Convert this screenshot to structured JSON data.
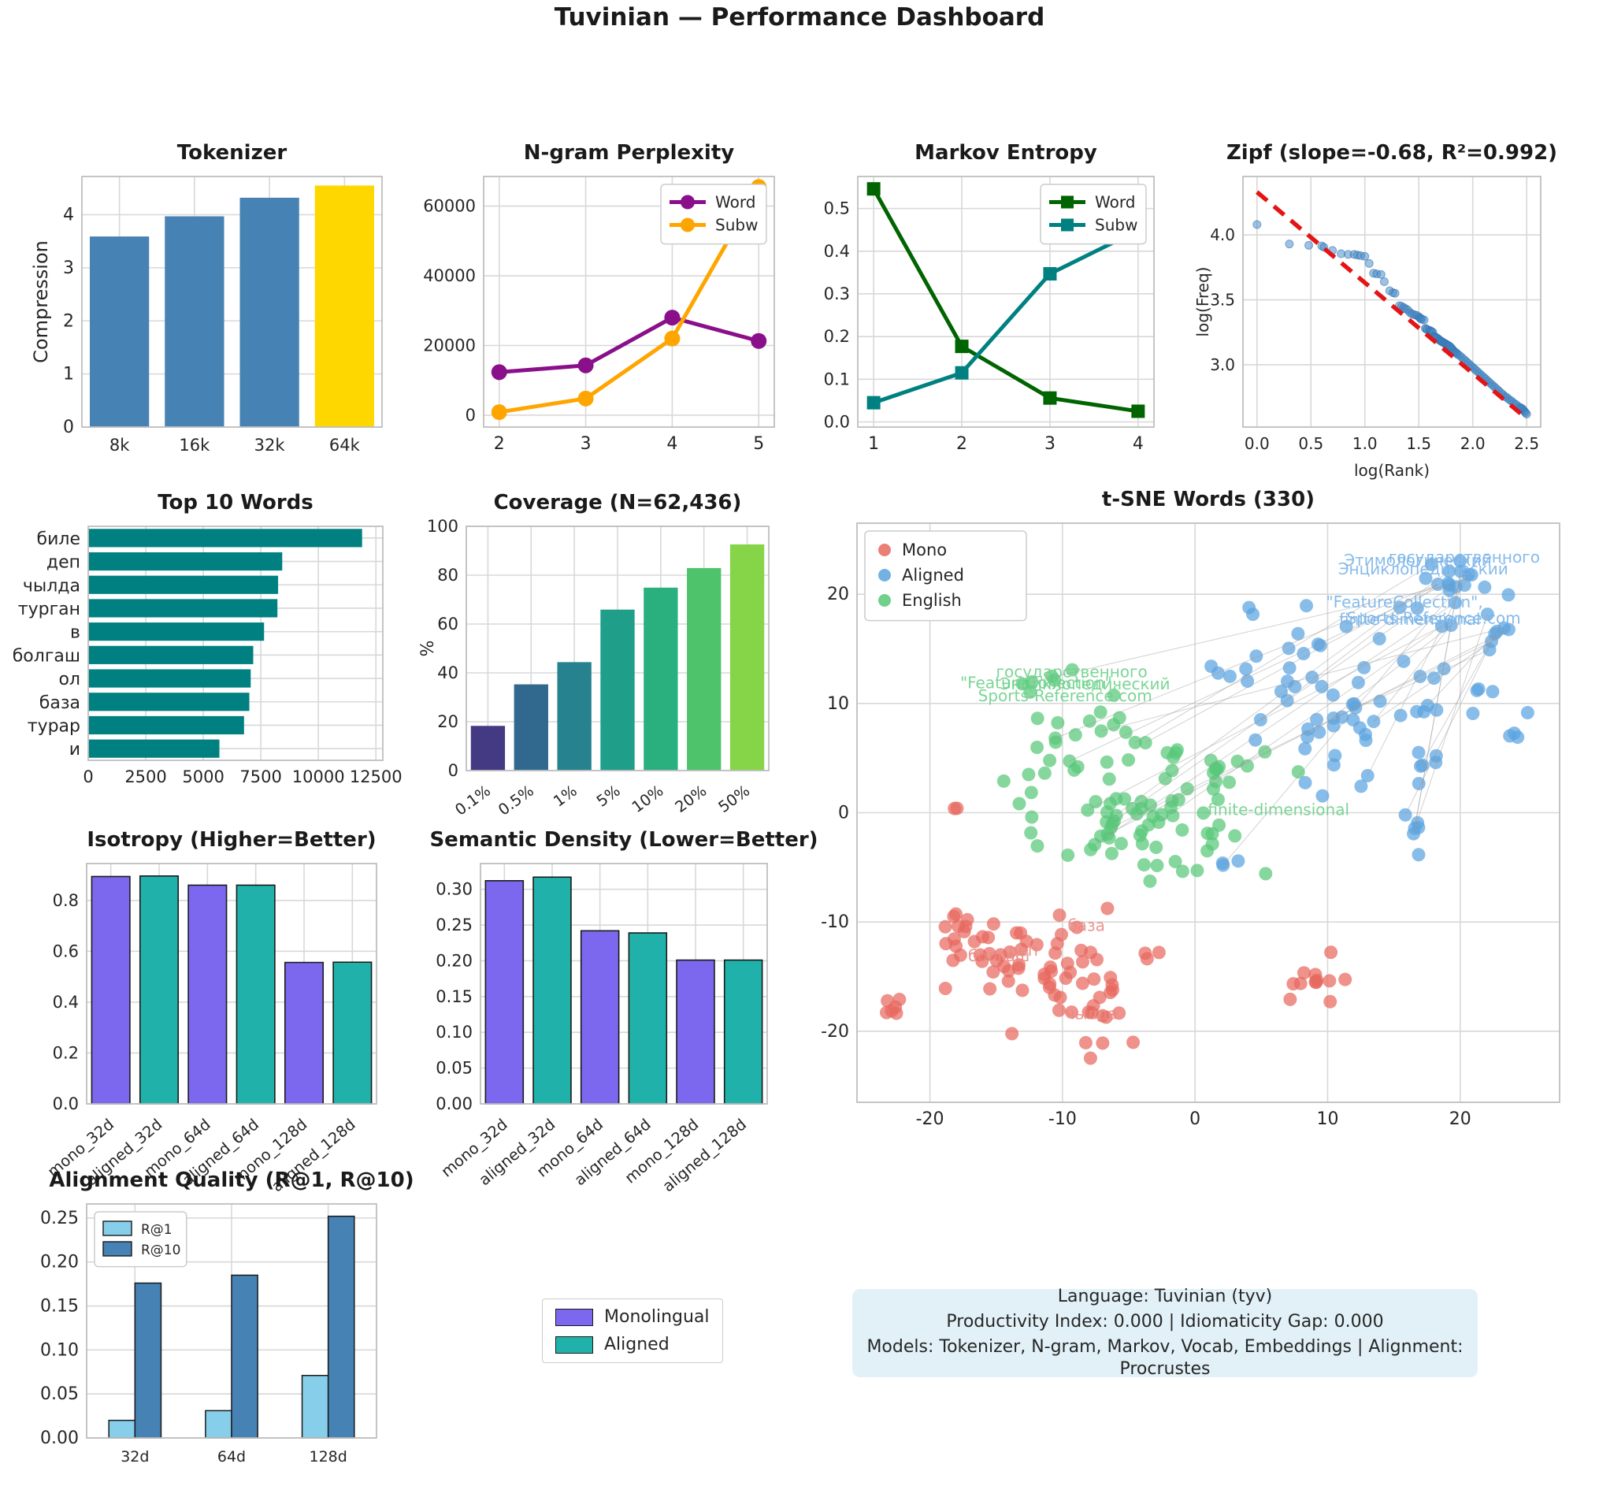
{
  "page_title": "Tuvinian — Performance Dashboard",
  "footer": {
    "bg_color": "#e2f1f8",
    "line1": "Language: Tuvinian (tyv)",
    "line2": "Productivity Index: 0.000  |  Idiomaticity Gap: 0.000",
    "line3": "Models: Tokenizer, N-gram, Markov, Vocab, Embeddings  |  Alignment: Procrustes"
  },
  "standalone_legend": {
    "items": [
      {
        "label": "Monolingual",
        "color": "#7b68ee"
      },
      {
        "label": "Aligned",
        "color": "#20b2aa"
      }
    ]
  },
  "chart_data": [
    {
      "id": "tokenizer",
      "type": "bar",
      "title": "Tokenizer",
      "ylabel": "Compression",
      "categories": [
        "8k",
        "16k",
        "32k",
        "64k"
      ],
      "values": [
        3.59,
        3.97,
        4.32,
        4.55
      ],
      "bar_colors": [
        "#4682b4",
        "#4682b4",
        "#4682b4",
        "#ffd700"
      ],
      "yticks": [
        0,
        1,
        2,
        3,
        4
      ],
      "ytick_labels": [
        "0",
        "1",
        "2",
        "3",
        "4"
      ],
      "ylim": [
        0,
        4.72
      ]
    },
    {
      "id": "ngram",
      "type": "line",
      "title": "N-gram Perplexity",
      "marker": "circle",
      "x": [
        2,
        3,
        4,
        5
      ],
      "xtick_labels": [
        "2",
        "3",
        "4",
        "5"
      ],
      "xlim": [
        1.82,
        5.18
      ],
      "ylim": [
        -3400,
        68500
      ],
      "yticks": [
        0,
        20000,
        40000,
        60000
      ],
      "ytick_labels": [
        "0",
        "20000",
        "40000",
        "60000"
      ],
      "legend_pos": "tr",
      "series": [
        {
          "name": "Word",
          "color": "#8a0f8a",
          "values": [
            12350,
            14300,
            28000,
            21300
          ]
        },
        {
          "name": "Subw",
          "color": "#ffa500",
          "values": [
            880,
            4780,
            22000,
            65500
          ]
        }
      ]
    },
    {
      "id": "markov",
      "type": "line",
      "title": "Markov Entropy",
      "marker": "square",
      "x": [
        1,
        2,
        3,
        4
      ],
      "xtick_labels": [
        "1",
        "2",
        "3",
        "4"
      ],
      "xlim": [
        0.82,
        4.18
      ],
      "ylim": [
        -0.012,
        0.575
      ],
      "yticks": [
        0,
        0.1,
        0.2,
        0.3,
        0.4,
        0.5
      ],
      "ytick_labels": [
        "0.0",
        "0.1",
        "0.2",
        "0.3",
        "0.4",
        "0.5"
      ],
      "legend_pos": "tr",
      "series": [
        {
          "name": "Word",
          "color": "#006400",
          "values": [
            0.546,
            0.177,
            0.056,
            0.025
          ]
        },
        {
          "name": "Subw",
          "color": "#008080",
          "values": [
            0.045,
            0.115,
            0.347,
            0.449
          ]
        }
      ]
    },
    {
      "id": "zipf",
      "type": "scatter-fit",
      "title": "Zipf (slope=-0.68, R²=0.992)",
      "xlabel": "log(Rank)",
      "ylabel": "log(Freq)",
      "slope": -0.68,
      "r2": 0.992,
      "xlim": [
        -0.13,
        2.63
      ],
      "ylim": [
        2.52,
        4.45
      ],
      "xticks": [
        0,
        0.5,
        1,
        1.5,
        2,
        2.5
      ],
      "xtick_labels": [
        "0.0",
        "0.5",
        "1.0",
        "1.5",
        "2.0",
        "2.5"
      ],
      "yticks": [
        3,
        3.5,
        4
      ],
      "ytick_labels": [
        "3.0",
        "3.5",
        "4.0"
      ],
      "point_color": "#3d85c8",
      "fit_color": "#e41414",
      "fit_line": {
        "x1": 0,
        "y1": 4.33,
        "x2": 2.5,
        "y2": 2.585
      },
      "points": [
        [
          0.0,
          4.08
        ],
        [
          0.3,
          3.93
        ],
        [
          0.48,
          3.92
        ],
        [
          0.6,
          3.915
        ],
        [
          0.62,
          3.905
        ],
        [
          0.7,
          3.88
        ],
        [
          0.78,
          3.855
        ],
        [
          0.845,
          3.85
        ],
        [
          0.9,
          3.85
        ],
        [
          0.93,
          3.845
        ],
        [
          0.96,
          3.84
        ],
        [
          1.0,
          3.835
        ],
        [
          1.04,
          3.78
        ],
        [
          1.08,
          3.705
        ],
        [
          1.11,
          3.7
        ],
        [
          1.15,
          3.695
        ],
        [
          1.18,
          3.64
        ],
        [
          1.23,
          3.57
        ],
        [
          1.26,
          3.555
        ],
        [
          1.28,
          3.55
        ],
        [
          1.32,
          3.455
        ],
        [
          1.34,
          3.45
        ],
        [
          1.36,
          3.44
        ],
        [
          1.38,
          3.43
        ],
        [
          1.4,
          3.42
        ],
        [
          1.42,
          3.4
        ],
        [
          1.44,
          3.39
        ],
        [
          1.46,
          3.385
        ],
        [
          1.48,
          3.38
        ],
        [
          1.5,
          3.37
        ],
        [
          1.51,
          3.36
        ],
        [
          1.52,
          3.355
        ],
        [
          1.53,
          3.35
        ],
        [
          1.55,
          3.345
        ],
        [
          1.56,
          3.28
        ],
        [
          1.57,
          3.275
        ],
        [
          1.58,
          3.27
        ],
        [
          1.6,
          3.265
        ],
        [
          1.61,
          3.26
        ],
        [
          1.62,
          3.255
        ],
        [
          1.63,
          3.25
        ],
        [
          1.64,
          3.22
        ],
        [
          1.65,
          3.215
        ],
        [
          1.66,
          3.21
        ],
        [
          1.67,
          3.205
        ],
        [
          1.68,
          3.2
        ],
        [
          1.69,
          3.19
        ],
        [
          1.7,
          3.185
        ],
        [
          1.71,
          3.18
        ],
        [
          1.72,
          3.175
        ],
        [
          1.73,
          3.17
        ],
        [
          1.74,
          3.165
        ],
        [
          1.75,
          3.16
        ],
        [
          1.76,
          3.155
        ],
        [
          1.77,
          3.15
        ],
        [
          1.78,
          3.145
        ],
        [
          1.79,
          3.14
        ],
        [
          1.8,
          3.13
        ],
        [
          1.81,
          3.12
        ],
        [
          1.82,
          3.11
        ],
        [
          1.83,
          3.1
        ],
        [
          1.84,
          3.095
        ],
        [
          1.85,
          3.09
        ],
        [
          1.86,
          3.08
        ],
        [
          1.88,
          3.07
        ],
        [
          1.9,
          3.055
        ],
        [
          1.92,
          3.04
        ],
        [
          1.94,
          3.025
        ],
        [
          1.96,
          3.01
        ],
        [
          1.98,
          2.995
        ],
        [
          2.0,
          2.98
        ],
        [
          2.02,
          2.965
        ],
        [
          2.04,
          2.95
        ],
        [
          2.06,
          2.935
        ],
        [
          2.08,
          2.92
        ],
        [
          2.1,
          2.905
        ],
        [
          2.12,
          2.89
        ],
        [
          2.14,
          2.875
        ],
        [
          2.16,
          2.86
        ],
        [
          2.18,
          2.845
        ],
        [
          2.2,
          2.83
        ],
        [
          2.22,
          2.815
        ],
        [
          2.24,
          2.8
        ],
        [
          2.26,
          2.785
        ],
        [
          2.28,
          2.77
        ],
        [
          2.3,
          2.755
        ],
        [
          2.32,
          2.745
        ],
        [
          2.34,
          2.73
        ],
        [
          2.36,
          2.72
        ],
        [
          2.38,
          2.705
        ],
        [
          2.4,
          2.695
        ],
        [
          2.42,
          2.68
        ],
        [
          2.44,
          2.67
        ],
        [
          2.45,
          2.665
        ],
        [
          2.46,
          2.66
        ],
        [
          2.47,
          2.65
        ],
        [
          2.48,
          2.64
        ],
        [
          2.49,
          2.63
        ],
        [
          2.5,
          2.62
        ]
      ]
    },
    {
      "id": "topwords",
      "type": "hbar",
      "title": "Top 10 Words",
      "categories": [
        "биле",
        "деп",
        "чылда",
        "турган",
        "в",
        "болгаш",
        "ол",
        "база",
        "турар",
        "и"
      ],
      "values": [
        11900,
        8430,
        8250,
        8220,
        7640,
        7170,
        7060,
        7000,
        6770,
        5700
      ],
      "bar_color": "#008080",
      "xticks": [
        0,
        2500,
        5000,
        7500,
        10000,
        12500
      ],
      "xtick_labels": [
        "0",
        "2500",
        "5000",
        "7500",
        "10000",
        "12500"
      ],
      "xlim": [
        0,
        12800
      ]
    },
    {
      "id": "coverage",
      "type": "bar",
      "title": "Coverage (N=62,436)",
      "ylabel": "%",
      "categories": [
        "0.1%",
        "0.5%",
        "1%",
        "5%",
        "10%",
        "20%",
        "50%"
      ],
      "values": [
        18.3,
        35.3,
        44.4,
        65.9,
        74.9,
        82.9,
        92.6
      ],
      "bar_colors": [
        "#443983",
        "#31688e",
        "#26828e",
        "#1f9e89",
        "#2ab07f",
        "#4ec36b",
        "#86d549"
      ],
      "yticks": [
        0,
        20,
        40,
        60,
        80,
        100
      ],
      "ytick_labels": [
        "0",
        "20",
        "40",
        "60",
        "80",
        "100"
      ],
      "ylim": [
        0,
        100
      ],
      "xtick_rotate": -36
    },
    {
      "id": "tsne",
      "type": "scatter-clusters",
      "title": "t-SNE Words (330)",
      "xlim": [
        -25.5,
        27.5
      ],
      "ylim": [
        -26.5,
        26.5
      ],
      "xticks": [
        -20,
        -10,
        0,
        10,
        20
      ],
      "xtick_labels": [
        "-20",
        "-10",
        "0",
        "10",
        "20"
      ],
      "yticks": [
        -20,
        -10,
        0,
        10,
        20
      ],
      "ytick_labels": [
        "-20",
        "-10",
        "0",
        "10",
        "20"
      ],
      "seed": 7,
      "legend": [
        {
          "label": "Mono",
          "color": "#e8685e"
        },
        {
          "label": "Aligned",
          "color": "#5ba3e0"
        },
        {
          "label": "English",
          "color": "#57c878"
        }
      ],
      "clusters": [
        {
          "name": "Mono",
          "color": "#e8685e",
          "blobs": [
            [
              -13,
              -13.2,
              3.4,
              2.4,
              55
            ],
            [
              -7.5,
              -17.5,
              3.0,
              2.2,
              20
            ],
            [
              9.6,
              -15.2,
              1.3,
              1.0,
              12
            ],
            [
              -22.6,
              -17.9,
              0.35,
              0.65,
              6
            ],
            [
              -17.8,
              -10.2,
              0.7,
              0.9,
              5
            ],
            [
              -18,
              0.4,
              0.25,
              0.4,
              2
            ]
          ]
        },
        {
          "name": "English",
          "color": "#57c878",
          "blobs": [
            [
              -3.5,
              -0.6,
              4.2,
              3.0,
              70
            ],
            [
              -8.6,
              6.0,
              3.0,
              2.2,
              20
            ],
            [
              1.6,
              5.2,
              2.4,
              1.8,
              12
            ],
            [
              -11.6,
              11.8,
              0.8,
              0.5,
              5
            ]
          ]
        },
        {
          "name": "Aligned",
          "color": "#5ba3e0",
          "blobs": [
            [
              13,
              9.5,
              4.2,
              3.8,
              58
            ],
            [
              19,
              21.8,
              1.5,
              1.2,
              14
            ],
            [
              21.6,
              17.6,
              2.2,
              1.3,
              12
            ],
            [
              5.6,
              13,
              2.6,
              2.0,
              10
            ],
            [
              16.7,
              -0.9,
              0.4,
              1.3,
              7
            ],
            [
              24.3,
              6.6,
              0.7,
              1.2,
              4
            ],
            [
              2,
              -4.6,
              0.9,
              0.5,
              3
            ],
            [
              3.9,
              18.9,
              0.4,
              0.4,
              2
            ]
          ]
        }
      ],
      "connections": {
        "count": 26,
        "color": "#999999"
      },
      "annotations": [
        {
          "text": "Этимологический",
          "x": 16.8,
          "y": 22.6,
          "color": "#7ab4e8"
        },
        {
          "text": "государственного",
          "x": 20.3,
          "y": 22.9,
          "color": "#7ab4e8"
        },
        {
          "text": "Энциклопедический",
          "x": 17.2,
          "y": 21.8,
          "color": "#7ab4e8"
        },
        {
          "text": "\"FeatureCollection\",",
          "x": 15.8,
          "y": 18.8,
          "color": "#7ab4e8"
        },
        {
          "text": "finite-dimensional",
          "x": 16.2,
          "y": 17.2,
          "color": "#7ab4e8"
        },
        {
          "text": "Sports-Reference.com",
          "x": 18.0,
          "y": 17.3,
          "color": "#7ab4e8"
        },
        {
          "text": "государственного",
          "x": -9.3,
          "y": 12.4,
          "color": "#6ed08b"
        },
        {
          "text": "\"FeatureCollection\",",
          "x": -11.8,
          "y": 11.4,
          "color": "#6ed08b"
        },
        {
          "text": "Энциклопедический",
          "x": -8.3,
          "y": 11.3,
          "color": "#6ed08b"
        },
        {
          "text": "Sports-Reference.com",
          "x": -9.8,
          "y": 10.2,
          "color": "#6ed08b"
        },
        {
          "text": "finite-dimensional",
          "x": 6.3,
          "y": -0.2,
          "color": "#6ed08b"
        },
        {
          "text": "база",
          "x": -8.2,
          "y": -10.8,
          "color": "#e88a82"
        },
        {
          "text": "деп",
          "x": -13.0,
          "y": -13.1,
          "color": "#e88a82"
        },
        {
          "text": "болгаш",
          "x": -14.8,
          "y": -13.6,
          "color": "#e88a82"
        },
        {
          "text": "чылда",
          "x": -7.8,
          "y": -18.9,
          "color": "#e88a82"
        }
      ]
    },
    {
      "id": "isotropy",
      "type": "bar",
      "title": "Isotropy (Higher=Better)",
      "categories": [
        "mono_32d",
        "aligned_32d",
        "mono_64d",
        "aligned_64d",
        "mono_128d",
        "aligned_128d"
      ],
      "values": [
        0.894,
        0.896,
        0.86,
        0.86,
        0.556,
        0.557
      ],
      "bar_colors": [
        "#7b68ee",
        "#20b2aa",
        "#7b68ee",
        "#20b2aa",
        "#7b68ee",
        "#20b2aa"
      ],
      "edge": "#1a1a1a",
      "yticks": [
        0,
        0.2,
        0.4,
        0.6,
        0.8
      ],
      "ytick_labels": [
        "0.0",
        "0.2",
        "0.4",
        "0.6",
        "0.8"
      ],
      "ylim": [
        0,
        0.945
      ],
      "xtick_rotate": -40
    },
    {
      "id": "semdensity",
      "type": "bar",
      "title": "Semantic Density (Lower=Better)",
      "categories": [
        "mono_32d",
        "aligned_32d",
        "mono_64d",
        "aligned_64d",
        "mono_128d",
        "aligned_128d"
      ],
      "values": [
        0.312,
        0.317,
        0.242,
        0.239,
        0.201,
        0.201
      ],
      "bar_colors": [
        "#7b68ee",
        "#20b2aa",
        "#7b68ee",
        "#20b2aa",
        "#7b68ee",
        "#20b2aa"
      ],
      "edge": "#1a1a1a",
      "yticks": [
        0,
        0.05,
        0.1,
        0.15,
        0.2,
        0.25,
        0.3
      ],
      "ytick_labels": [
        "0.00",
        "0.05",
        "0.10",
        "0.15",
        "0.20",
        "0.25",
        "0.30"
      ],
      "ylim": [
        0,
        0.336
      ],
      "xtick_rotate": -40
    },
    {
      "id": "alignment",
      "type": "groupbar",
      "title": "Alignment Quality (R@1, R@10)",
      "categories": [
        "32d",
        "64d",
        "128d"
      ],
      "series": [
        {
          "name": "R@1",
          "color": "#87ceeb",
          "values": [
            0.02,
            0.031,
            0.071
          ]
        },
        {
          "name": "R@10",
          "color": "#4682b4",
          "values": [
            0.176,
            0.185,
            0.252
          ]
        }
      ],
      "edge": "#1a1a1a",
      "legend_pos": "tl",
      "yticks": [
        0,
        0.05,
        0.1,
        0.15,
        0.2,
        0.25
      ],
      "ytick_labels": [
        "0.00",
        "0.05",
        "0.10",
        "0.15",
        "0.20",
        "0.25"
      ],
      "ylim": [
        0,
        0.266
      ]
    }
  ]
}
